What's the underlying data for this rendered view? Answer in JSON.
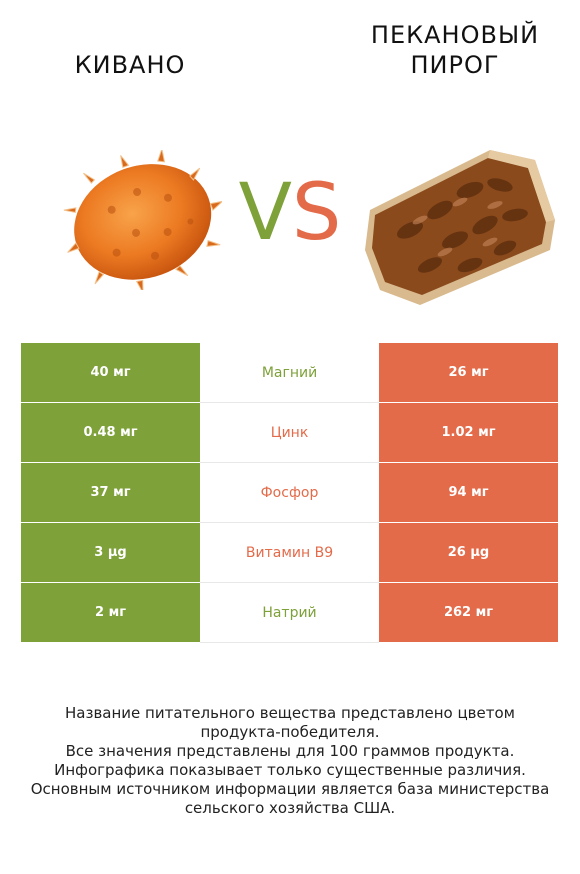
{
  "header": {
    "left_title": "КИВАНО",
    "right_title_line1": "ПЕКАНОВЫЙ",
    "right_title_line2": "ПИРОГ",
    "vs_v": "V",
    "vs_s": "S"
  },
  "colors": {
    "left_accent": "#7ea13a",
    "right_accent": "#e36b4a"
  },
  "rows": [
    {
      "left": "40 мг",
      "name": "Магний",
      "right": "26 мг",
      "winner": "left"
    },
    {
      "left": "0.48 мг",
      "name": "Цинк",
      "right": "1.02 мг",
      "winner": "right"
    },
    {
      "left": "37 мг",
      "name": "Фосфор",
      "right": "94 мг",
      "winner": "right"
    },
    {
      "left": "3 µg",
      "name": "Витамин B9",
      "right": "26 µg",
      "winner": "right"
    },
    {
      "left": "2 мг",
      "name": "Натрий",
      "right": "262 мг",
      "winner": "left"
    }
  ],
  "footer": {
    "line1": "Название питательного вещества представлено цветом",
    "line2": "продукта-победителя.",
    "line3": "Все значения представлены для 100 граммов продукта.",
    "line4": "Инфографика показывает только существенные различия.",
    "line5": "Основным источником информации является база министерства",
    "line6": "сельского хозяйства США."
  }
}
